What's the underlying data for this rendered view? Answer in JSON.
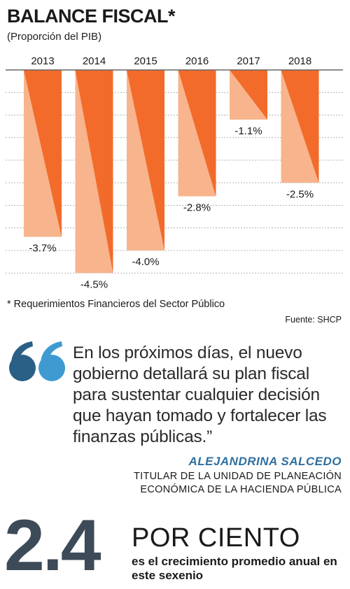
{
  "chart_data": {
    "type": "bar",
    "title": "BALANCE FISCAL*",
    "subtitle": "(Proporción del PIB)",
    "categories": [
      "2013",
      "2014",
      "2015",
      "2016",
      "2017",
      "2018"
    ],
    "values": [
      -3.7,
      -4.5,
      -4.0,
      -2.8,
      -1.1,
      -2.5
    ],
    "value_labels": [
      "-3.7%",
      "-4.5%",
      "-4.0%",
      "-2.8%",
      "-1.1%",
      "-2.5%"
    ],
    "ylim": [
      -5,
      0
    ],
    "grid": true,
    "colors": {
      "bar_dark": "#f26b2b",
      "bar_light": "#f8b48c",
      "grid": "#9a9a9a"
    }
  },
  "footnote": "* Requerimientos Financieros del Sector Público",
  "source": "Fuente: SHCP",
  "quote": {
    "text": "En los próximos días, el nuevo gobierno detallará su plan fiscal para sustentar cualquier decisión que hayan tomado y fortalecer las finanzas públicas.”",
    "icon": "quote-icon",
    "colors": {
      "dark": "#2a5f86",
      "light": "#3f9ad2"
    }
  },
  "author": {
    "name": "ALEJANDRINA SALCEDO",
    "role": "TITULAR DE LA UNIDAD DE PLANEACIÓN ECONÓMICA DE LA HACIENDA PÚBLICA"
  },
  "stat": {
    "number": "2.4",
    "unit": "POR CIENTO",
    "description": "es el crecimiento promedio anual en este sexenio"
  }
}
